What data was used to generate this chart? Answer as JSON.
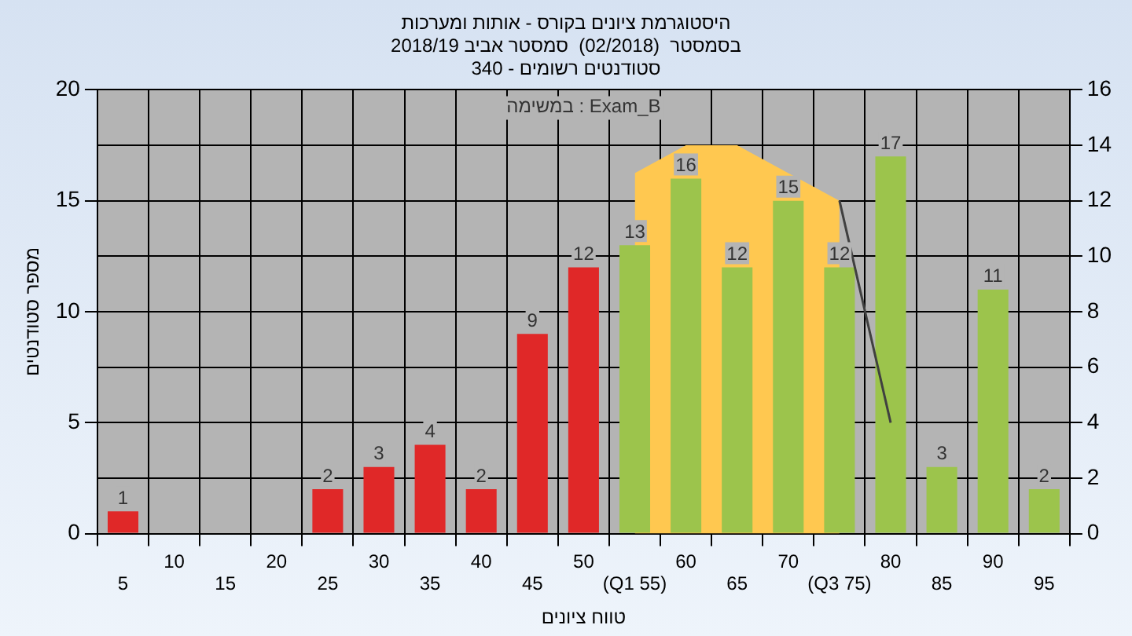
{
  "chart_data": {
    "type": "bar",
    "title": "היסטוגרמת ציונים בקורס - אותות ומערכות",
    "subtitle": "בסמסטר  (02/2018)  סמסטר אביב 2018/19\nסטודנטים רשומים - 340",
    "xlabel": "טווח ציונים",
    "ylabel": "מספר סטודנטים",
    "categories": [
      "5",
      "10",
      "15",
      "20",
      "25",
      "30",
      "35",
      "40",
      "45",
      "50",
      "(Q1 55)",
      "60",
      "65",
      "70",
      "(Q3 75)",
      "80",
      "85",
      "90",
      "95"
    ],
    "series": [
      {
        "colors": [
          "#e02828",
          "#e02828",
          "#e02828",
          "#e02828",
          "#e02828",
          "#e02828",
          "#e02828",
          "#e02828",
          "#e02828",
          "#e02828",
          "#9cc44c",
          "#9cc44c",
          "#9cc44c",
          "#9cc44c",
          "#9cc44c",
          "#9cc44c",
          "#9cc44c",
          "#9cc44c",
          "#9cc44c"
        ],
        "values": [
          1,
          0,
          0,
          0,
          2,
          3,
          4,
          2,
          9,
          12,
          13,
          16,
          12,
          15,
          12,
          17,
          3,
          11,
          2
        ],
        "value_labels": [
          "1",
          null,
          null,
          null,
          "2",
          "3",
          "4",
          "2",
          "9",
          "12",
          "13",
          "16",
          "12",
          "15",
          "12",
          "17",
          "3",
          "11",
          "2"
        ]
      },
      {
        "type": "area",
        "axis": "y2",
        "color": "#ffc850",
        "values": [
          null,
          null,
          null,
          null,
          null,
          null,
          null,
          null,
          null,
          null,
          13,
          14,
          14,
          13,
          12,
          null,
          null,
          null,
          null
        ]
      },
      {
        "type": "line",
        "axis": "y2",
        "color": "#404040",
        "values": [
          null,
          null,
          null,
          null,
          null,
          null,
          null,
          null,
          null,
          null,
          null,
          null,
          null,
          null,
          12,
          4,
          null,
          null,
          null
        ]
      }
    ],
    "ylim": [
      0,
      20
    ],
    "yticks": [
      0,
      5,
      10,
      15,
      20
    ],
    "y2lim": [
      0,
      16
    ],
    "y2ticks": [
      0,
      2,
      4,
      6,
      8,
      10,
      12,
      14,
      16
    ],
    "annotations": [
      "במשימה : Exam_B"
    ],
    "grid": true,
    "legend": false
  }
}
